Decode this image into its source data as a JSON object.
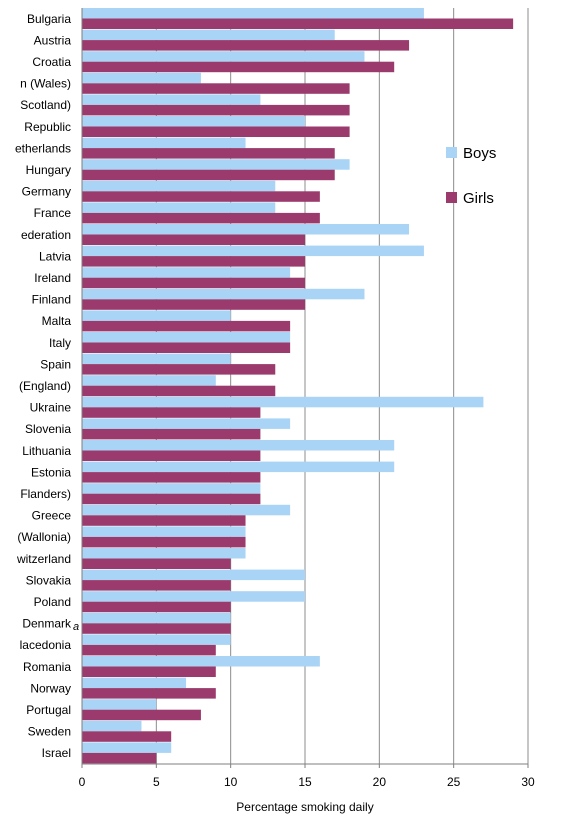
{
  "chart_data": {
    "type": "bar",
    "orientation": "horizontal",
    "xlabel": "Percentage smoking daily",
    "xlim": [
      0,
      30
    ],
    "xticks": [
      "0",
      "5",
      "10",
      "15",
      "20",
      "25",
      "30"
    ],
    "grid": "vertical",
    "legend_position": "right",
    "footnote_marker": "a",
    "categories": [
      "Bulgaria",
      "Austria",
      "Croatia",
      "n (Wales)",
      "Scotland)",
      "Republic",
      "etherlands",
      "Hungary",
      "Germany",
      "France",
      "ederation",
      "Latvia",
      "Ireland",
      "Finland",
      "Malta",
      "Italy",
      "Spain",
      "(England)",
      "Ukraine",
      "Slovenia",
      "Lithuania",
      "Estonia",
      "Flanders)",
      "Greece",
      "(Wallonia)",
      "witzerland",
      "Slovakia",
      "Poland",
      "Denmark",
      "lacedonia",
      "Romania",
      "Norway",
      "Portugal",
      "Sweden",
      "Israel"
    ],
    "series": [
      {
        "name": "Boys",
        "color": "#a9d4f5",
        "values": [
          23,
          17,
          19,
          8,
          12,
          15,
          11,
          18,
          13,
          13,
          22,
          23,
          14,
          19,
          10,
          14,
          10,
          9,
          27,
          14,
          21,
          21,
          12,
          14,
          11,
          11,
          15,
          15,
          10,
          10,
          16,
          7,
          5,
          4,
          6
        ]
      },
      {
        "name": "Girls",
        "color": "#9b3a6c",
        "values": [
          29,
          22,
          21,
          18,
          18,
          18,
          17,
          17,
          16,
          16,
          15,
          15,
          15,
          15,
          14,
          14,
          13,
          13,
          12,
          12,
          12,
          12,
          12,
          11,
          11,
          10,
          10,
          10,
          10,
          9,
          9,
          9,
          8,
          6,
          5
        ]
      }
    ]
  }
}
